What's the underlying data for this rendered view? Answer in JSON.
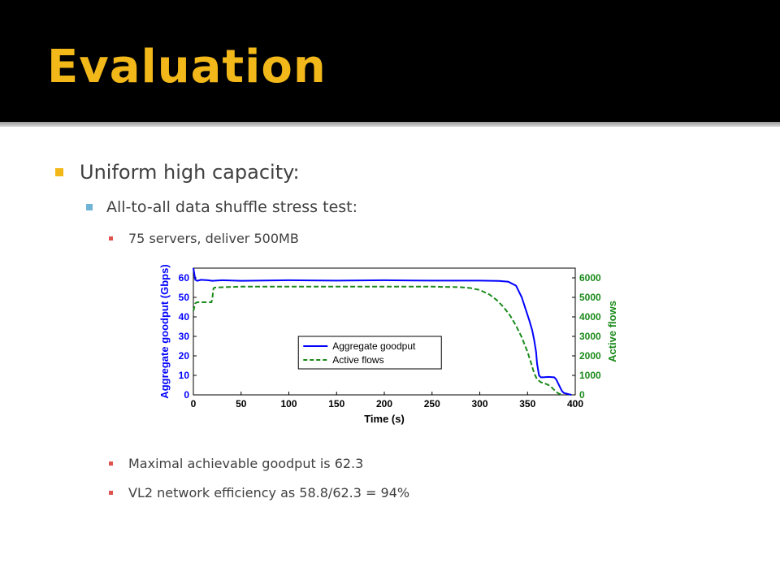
{
  "slide": {
    "title": "Evaluation",
    "bullets": {
      "level1": "Uniform high capacity:",
      "level2": "All-to-all data shuffle stress test:",
      "level3a": "75 servers, deliver 500MB",
      "level3b": "Maximal achievable goodput is 62.3",
      "level3c": "VL2 network efficiency as 58.8/62.3 = 94%"
    },
    "colors": {
      "title": "#f2b81a",
      "bullet_l1": "#f2b81a",
      "bullet_l2": "#6fb4d6",
      "bullet_l3": "#e0524d",
      "goodput": "#0000ff",
      "flows": "#1a8a1a"
    }
  },
  "chart_data": {
    "type": "line",
    "xlabel": "Time (s)",
    "ylabel_left": "Aggregate goodput (Gbps)",
    "ylabel_right": "Active flows",
    "xlim": [
      0,
      400
    ],
    "ylim_left": [
      0,
      65
    ],
    "ylim_right": [
      0,
      6500
    ],
    "x_ticks": [
      0,
      50,
      100,
      150,
      200,
      250,
      300,
      350,
      400
    ],
    "y_ticks_left": [
      0,
      10,
      20,
      30,
      40,
      50,
      60
    ],
    "y_ticks_right": [
      0,
      1000,
      2000,
      3000,
      4000,
      5000,
      6000
    ],
    "grid": false,
    "legend": "center",
    "series": [
      {
        "name": "Aggregate goodput",
        "axis": "left",
        "style": "solid",
        "x": [
          0,
          1,
          2,
          4,
          8,
          15,
          20,
          30,
          50,
          100,
          150,
          200,
          250,
          300,
          320,
          330,
          338,
          344,
          348,
          352,
          355,
          357,
          359,
          360,
          362,
          364,
          366,
          372,
          378,
          380,
          382,
          384,
          386,
          388,
          392,
          396
        ],
        "y": [
          65,
          62,
          59,
          58.5,
          59,
          58.8,
          58.5,
          58.8,
          58.5,
          58.8,
          58.6,
          58.8,
          58.6,
          58.6,
          58.4,
          58,
          56,
          50,
          44,
          38,
          33,
          28,
          22,
          16,
          10,
          9,
          9,
          9.2,
          9,
          8,
          6,
          4,
          2,
          1,
          0.5,
          0
        ]
      },
      {
        "name": "Active flows",
        "axis": "right",
        "style": "dashed",
        "x": [
          0,
          2,
          4,
          19,
          20,
          21,
          22,
          30,
          50,
          100,
          150,
          200,
          250,
          280,
          290,
          300,
          310,
          318,
          325,
          332,
          338,
          344,
          350,
          354,
          357,
          360,
          364,
          370,
          374,
          377,
          380,
          383,
          386
        ],
        "y": [
          4300,
          4700,
          4750,
          4750,
          5000,
          5450,
          5500,
          5520,
          5550,
          5550,
          5550,
          5550,
          5550,
          5520,
          5480,
          5380,
          5150,
          4850,
          4500,
          4050,
          3550,
          2950,
          2200,
          1600,
          1100,
          800,
          650,
          550,
          450,
          300,
          150,
          60,
          0
        ]
      }
    ]
  }
}
